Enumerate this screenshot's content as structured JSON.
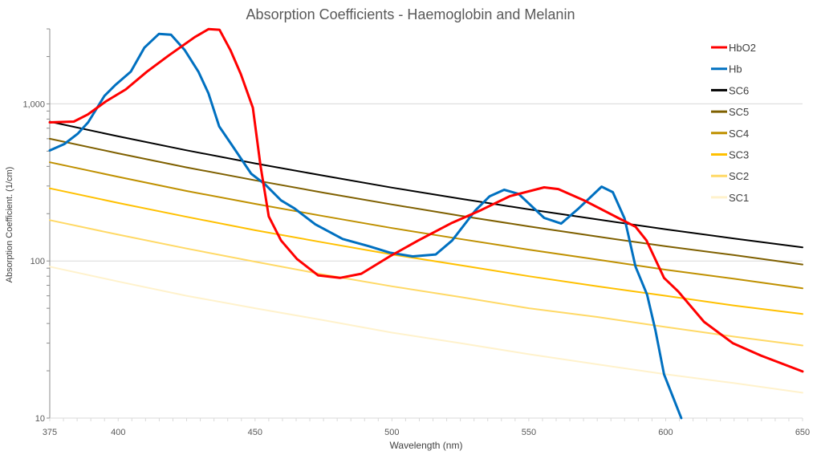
{
  "chart_data": {
    "type": "line",
    "title": "Absorption Coefficients - Haemoglobin and Melanin",
    "xlabel": "Wavelength (nm)",
    "ylabel": "Absorption Coefficient. (1/cm)",
    "xlim": [
      375,
      650
    ],
    "ylim": [
      10,
      3000
    ],
    "yscale": "log",
    "x_ticks": [
      375,
      400,
      450,
      500,
      550,
      600,
      650
    ],
    "y_ticks": [
      {
        "value": 10,
        "label": "10"
      },
      {
        "value": 100,
        "label": "100"
      },
      {
        "value": 1000,
        "label": "1,000"
      }
    ],
    "grid": "horizontal major",
    "legend_position": "top-right",
    "series": [
      {
        "name": "HbO2",
        "color": "#ff0000",
        "width": 3,
        "points": [
          [
            375,
            762
          ],
          [
            383.8,
            771
          ],
          [
            389,
            858
          ],
          [
            395.5,
            1036
          ],
          [
            402.8,
            1236
          ],
          [
            410.5,
            1603
          ],
          [
            418.4,
            2028
          ],
          [
            428,
            2660
          ],
          [
            433,
            2990
          ],
          [
            437,
            2960
          ],
          [
            441,
            2200
          ],
          [
            444.8,
            1546
          ],
          [
            449.2,
            943
          ],
          [
            452,
            404
          ],
          [
            455,
            192
          ],
          [
            459.5,
            135
          ],
          [
            465.3,
            103
          ],
          [
            473,
            81
          ],
          [
            481,
            78
          ],
          [
            488.8,
            83
          ],
          [
            499.2,
            107
          ],
          [
            509.6,
            135
          ],
          [
            522,
            175
          ],
          [
            532.6,
            211
          ],
          [
            543,
            258
          ],
          [
            555.6,
            294
          ],
          [
            560.8,
            287
          ],
          [
            570.2,
            243
          ],
          [
            582.6,
            188
          ],
          [
            589,
            165
          ],
          [
            593,
            135
          ],
          [
            599.4,
            78
          ],
          [
            604.6,
            64
          ],
          [
            614,
            41
          ],
          [
            624.5,
            30
          ],
          [
            634.8,
            25
          ],
          [
            650,
            19.8
          ]
        ]
      },
      {
        "name": "Hb",
        "color": "#0070c0",
        "width": 3,
        "points": [
          [
            375,
            505
          ],
          [
            380.3,
            555
          ],
          [
            385.3,
            647
          ],
          [
            389,
            762
          ],
          [
            395,
            1125
          ],
          [
            398.8,
            1311
          ],
          [
            404.6,
            1603
          ],
          [
            409.6,
            2280
          ],
          [
            414.9,
            2790
          ],
          [
            419.3,
            2755
          ],
          [
            424.3,
            2200
          ],
          [
            429.3,
            1603
          ],
          [
            433,
            1165
          ],
          [
            436.9,
            719
          ],
          [
            441.9,
            535
          ],
          [
            448.6,
            359
          ],
          [
            453.6,
            308
          ],
          [
            459.5,
            243
          ],
          [
            464.4,
            216
          ],
          [
            472,
            171
          ],
          [
            482,
            138
          ],
          [
            491.7,
            124
          ],
          [
            499.2,
            113
          ],
          [
            507.6,
            107
          ],
          [
            516,
            110
          ],
          [
            522,
            135
          ],
          [
            530.4,
            209
          ],
          [
            535.7,
            258
          ],
          [
            541,
            284
          ],
          [
            546.3,
            267
          ],
          [
            555.6,
            188
          ],
          [
            561.8,
            173
          ],
          [
            568.2,
            216
          ],
          [
            576.6,
            297
          ],
          [
            580.7,
            274
          ],
          [
            585,
            186
          ],
          [
            589,
            92
          ],
          [
            593.2,
            61
          ],
          [
            596.3,
            36
          ],
          [
            599.4,
            19
          ],
          [
            605.7,
            10
          ]
        ]
      },
      {
        "name": "SC6",
        "color": "#000000",
        "width": 2,
        "x": [
          375,
          400,
          425,
          450,
          475,
          500,
          525,
          550,
          575,
          600,
          625,
          650
        ],
        "values": [
          770,
          621,
          506,
          418,
          349,
          293,
          249,
          213,
          184,
          159,
          139,
          122
        ]
      },
      {
        "name": "SC5",
        "color": "#7f6000",
        "width": 2,
        "x": [
          375,
          400,
          425,
          450,
          475,
          500,
          525,
          550,
          575,
          600,
          625,
          650
        ],
        "values": [
          600,
          484,
          394,
          326,
          272,
          229,
          194,
          166,
          143,
          124,
          109,
          95
        ]
      },
      {
        "name": "SC4",
        "color": "#bf9000",
        "width": 2,
        "x": [
          375,
          400,
          425,
          450,
          475,
          500,
          525,
          550,
          575,
          600,
          625,
          650
        ],
        "values": [
          425,
          343,
          279,
          231,
          193,
          162,
          138,
          118,
          102,
          88,
          77,
          67
        ]
      },
      {
        "name": "SC3",
        "color": "#ffc000",
        "width": 2,
        "x": [
          375,
          400,
          425,
          450,
          475,
          500,
          525,
          550,
          575,
          600,
          625,
          650
        ],
        "values": [
          290,
          234,
          191,
          157,
          131,
          110,
          94,
          80,
          69,
          60,
          52,
          46
        ]
      },
      {
        "name": "SC2",
        "color": "#ffd966",
        "width": 2,
        "x": [
          375,
          400,
          425,
          450,
          475,
          500,
          525,
          550,
          575,
          600,
          625,
          650
        ],
        "values": [
          182,
          147,
          120,
          99,
          82,
          69,
          59,
          50,
          44,
          38,
          33,
          29
        ]
      },
      {
        "name": "SC1",
        "color": "#fff2cc",
        "width": 2,
        "x": [
          375,
          400,
          425,
          450,
          475,
          500,
          525,
          550,
          575,
          600,
          625,
          650
        ],
        "values": [
          92,
          74,
          60,
          50,
          42,
          35,
          30,
          25.5,
          22,
          19,
          16.7,
          14.5
        ]
      }
    ]
  }
}
